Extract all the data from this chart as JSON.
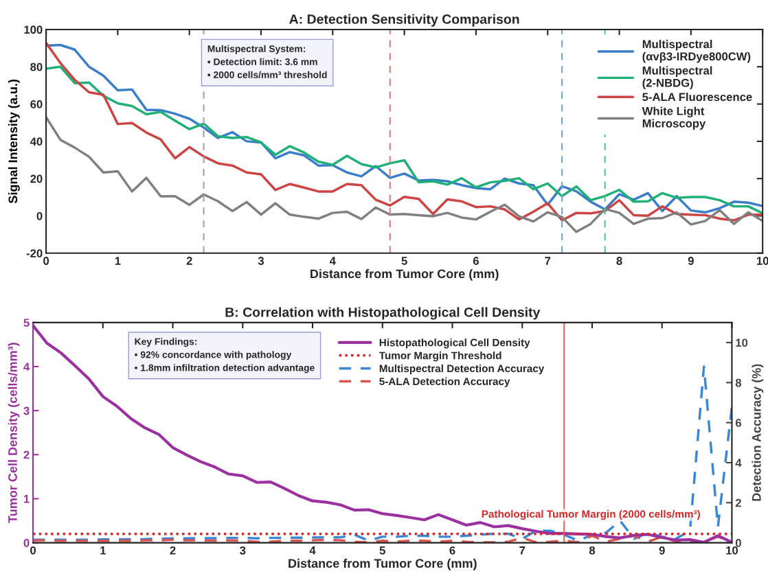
{
  "chart_data": [
    {
      "type": "line",
      "title": "A: Detection Sensitivity Comparison",
      "xlabel": "Distance from Tumor Core (mm)",
      "ylabel": "Signal Intensity (a.u.)",
      "x": [
        0,
        0.2,
        0.4,
        0.6,
        0.8,
        1,
        1.2,
        1.4,
        1.6,
        1.8,
        2,
        2.2,
        2.4,
        2.6,
        2.8,
        3,
        3.2,
        3.4,
        3.6,
        3.8,
        4,
        4.2,
        4.4,
        4.6,
        4.8,
        5,
        5.2,
        5.4,
        5.6,
        5.8,
        6,
        6.2,
        6.4,
        6.6,
        6.8,
        7,
        7.2,
        7.4,
        7.6,
        7.8,
        8,
        8.2,
        8.4,
        8.6,
        8.8,
        9,
        9.2,
        9.4,
        9.6,
        9.8,
        10
      ],
      "series": [
        {
          "name": "Multispectral\n(αvβ3-IRDye800CW)",
          "color": "#3a7dc9",
          "values": [
            91.3,
            91.7,
            89.2,
            80,
            75.2,
            67.4,
            67.8,
            56.9,
            56.7,
            54.8,
            52.1,
            47.4,
            41.8,
            44.9,
            40,
            39.4,
            30.9,
            34.2,
            32.5,
            27,
            27.2,
            23.3,
            21.2,
            26.7,
            20.4,
            22.7,
            19,
            19.3,
            18.6,
            16.5,
            14.9,
            14.3,
            20,
            17.4,
            16.5,
            6,
            15.9,
            13.2,
            7.6,
            3.5,
            11.6,
            8.7,
            12.2,
            2.6,
            10.6,
            2.9,
            1.9,
            4.1,
            7.6,
            7.1,
            5.3
          ]
        },
        {
          "name": "Multispectral\n(2-NBDG)",
          "color": "#1fb077",
          "values": [
            79,
            80,
            71.2,
            71.5,
            64.4,
            60.4,
            58.9,
            54.5,
            55.8,
            51.1,
            46.5,
            49.5,
            42.7,
            41.8,
            42.3,
            39.4,
            32.8,
            37.4,
            34,
            29.1,
            27.4,
            32.2,
            27.8,
            26,
            28.2,
            29.8,
            18,
            18.6,
            16.8,
            20.2,
            15.3,
            18,
            18.8,
            20.2,
            14.3,
            17.4,
            10.6,
            15.8,
            8.4,
            10.6,
            14,
            7.6,
            7.8,
            12.2,
            9.7,
            10.1,
            10.1,
            8.4,
            5.1,
            5.1,
            1.4
          ]
        },
        {
          "name": "5-ALA Fluorescence",
          "color": "#cc4444",
          "values": [
            92.8,
            82,
            73,
            66.3,
            65,
            49.3,
            49.8,
            44.7,
            41,
            30.9,
            36.9,
            31.9,
            28.2,
            27,
            23.3,
            22.3,
            13.9,
            17.1,
            15.2,
            13.1,
            13.1,
            17.1,
            16.5,
            8.7,
            5.6,
            10.2,
            9.1,
            1,
            8.8,
            7.8,
            4.7,
            5.1,
            3.5,
            -1.9,
            2.2,
            6.8,
            -2.4,
            1.6,
            1.4,
            2.6,
            8.4,
            0.4,
            0.1,
            5.1,
            1,
            0.6,
            0.4,
            -1.5,
            -2.4,
            0.6,
            0.6
          ]
        },
        {
          "name": "White Light\nMicroscopy",
          "color": "#808080",
          "values": [
            53,
            40.8,
            36.6,
            31.7,
            23.3,
            23.9,
            13.1,
            20.4,
            10.5,
            10.6,
            5.9,
            11.5,
            7.8,
            2.6,
            7.4,
            0.7,
            6.8,
            0.7,
            -0.5,
            -1.5,
            1.6,
            2.2,
            -1.7,
            4.5,
            0.7,
            1,
            0.4,
            -0.2,
            1.6,
            -0.9,
            -1.9,
            2.2,
            6,
            -0.2,
            -3,
            1.9,
            -0.6,
            -8.6,
            -4.3,
            3.7,
            1.6,
            -4.3,
            -1.5,
            -1.2,
            1.9,
            -4.6,
            -2.7,
            3.1,
            -4.3,
            1.9,
            -2.7
          ]
        }
      ],
      "ref_lines": [
        {
          "axis": "x",
          "value": 2.2,
          "color": "#a0a0a0",
          "line_style": "dashed"
        },
        {
          "axis": "x",
          "value": 4.8,
          "color": "#e07a7a",
          "line_style": "dashed"
        },
        {
          "axis": "x",
          "value": 7.2,
          "color": "#6fa5de",
          "line_style": "dashed"
        },
        {
          "axis": "x",
          "value": 7.8,
          "color": "#4cc594",
          "line_style": "dashed"
        }
      ],
      "annotations": [
        "Multispectral System:\n• Detection limit: 3.6 mm\n• 2000 cells/mm³ threshold"
      ],
      "xlim": [
        0,
        10
      ],
      "xticks": [
        0,
        1,
        2,
        3,
        4,
        5,
        6,
        7,
        8,
        9,
        10
      ],
      "ylim": [
        -20,
        100
      ],
      "yticks": [
        -20,
        0,
        20,
        40,
        60,
        80,
        100
      ],
      "legend": "top right",
      "grid": false
    },
    {
      "type": "line",
      "title": "B: Correlation with Histopathological Cell Density",
      "xlabel": "Distance from Tumor Core (mm)",
      "ylabel": "Tumor Cell Density (cells/mm³)",
      "y2label": "Detection Accuracy (%)",
      "x": [
        0,
        0.2,
        0.4,
        0.6,
        0.8,
        1,
        1.2,
        1.4,
        1.6,
        1.8,
        2,
        2.2,
        2.4,
        2.6,
        2.8,
        3,
        3.2,
        3.4,
        3.6,
        3.8,
        4,
        4.2,
        4.4,
        4.6,
        4.8,
        5,
        5.2,
        5.4,
        5.6,
        5.8,
        6,
        6.2,
        6.4,
        6.6,
        6.8,
        7,
        7.2,
        7.4,
        7.6,
        7.8,
        8,
        8.2,
        8.4,
        8.6,
        8.8,
        9,
        9.2,
        9.4,
        9.6,
        9.8,
        10
      ],
      "series": [
        {
          "name": "Histopathological Cell Density",
          "color": "#9b30a0",
          "line_style": "solid",
          "values": [
            4.93,
            4.53,
            4.31,
            4.02,
            3.72,
            3.32,
            3.1,
            2.82,
            2.61,
            2.46,
            2.16,
            1.99,
            1.84,
            1.72,
            1.56,
            1.52,
            1.37,
            1.38,
            1.23,
            1.07,
            0.95,
            0.92,
            0.86,
            0.74,
            0.75,
            0.66,
            0.62,
            0.57,
            0.52,
            0.64,
            0.52,
            0.4,
            0.46,
            0.36,
            0.39,
            0.32,
            0.26,
            0.21,
            0.21,
            0.2,
            0.19,
            0.14,
            0.11,
            0.17,
            0.19,
            0.12,
            0.06,
            0.07,
            0.01,
            0.16,
            0.01
          ]
        },
        {
          "name": "Tumor Margin Threshold",
          "color": "#d62728",
          "line_style": "dotted",
          "x": [
            0,
            10
          ],
          "values": [
            0.2,
            0.2
          ]
        },
        {
          "name": "Multispectral Detection Accuracy",
          "color": "#3a87d6",
          "line_style": "dashed",
          "axis": "y2",
          "values": [
            0.15,
            0.15,
            0.15,
            0.15,
            0.15,
            0.17,
            0.17,
            0.18,
            0.18,
            0.2,
            0.22,
            0.22,
            0.23,
            0.23,
            0.24,
            0.24,
            0.22,
            0.24,
            0.25,
            0.25,
            0.26,
            0.27,
            0.27,
            0.4,
            0.1,
            0.3,
            0.3,
            0.35,
            0.35,
            0.3,
            0.3,
            0.35,
            0.4,
            0.45,
            0.45,
            0.2,
            0.6,
            0.6,
            0.4,
            0.1,
            0.4,
            0.5,
            1.1,
            0.2,
            0.5,
            0.3,
            0.2,
            0.6,
            8.8,
            0.8,
            6.8
          ]
        },
        {
          "name": "5-ALA Detection Accuracy",
          "color": "#d9534f",
          "line_style": "dashed",
          "axis": "y2",
          "values": [
            0.12,
            0.12,
            0.1,
            0.1,
            0.1,
            0.1,
            0.1,
            0.1,
            0.12,
            0.12,
            0.15,
            0.12,
            0.12,
            0.1,
            0.12,
            0.1,
            0.05,
            0.05,
            0.1,
            0.1,
            0.12,
            0.15,
            0.12,
            0.05,
            0.02,
            0.1,
            0.05,
            0.1,
            0.1,
            0.05,
            0.1,
            0.05,
            0.02,
            0.02,
            0.05,
            0.25,
            0.02,
            0.05,
            0.1,
            0.02,
            0.35,
            0.05,
            0.2,
            0.35,
            0.05,
            0.3,
            0.05,
            0.05,
            0.05,
            0.3,
            0.05
          ]
        }
      ],
      "ref_lines": [
        {
          "axis": "x",
          "value": 7.6,
          "color": "#e06060",
          "line_style": "solid"
        }
      ],
      "annotations": [
        "Key Findings:\n• 92% concordance with pathology\n• 1.8mm infiltration detection advantage",
        "Pathological Tumor Margin (2000 cells/mm³)"
      ],
      "xlim": [
        0,
        10
      ],
      "xticks": [
        0,
        1,
        2,
        3,
        4,
        5,
        6,
        7,
        8,
        9,
        10
      ],
      "ylim": [
        0,
        5
      ],
      "yticks": [
        0,
        1,
        2,
        3,
        4,
        5
      ],
      "y2lim": [
        0,
        11
      ],
      "y2ticks": [
        0,
        2,
        4,
        6,
        8,
        10
      ],
      "legend": "top right",
      "grid": false
    }
  ]
}
